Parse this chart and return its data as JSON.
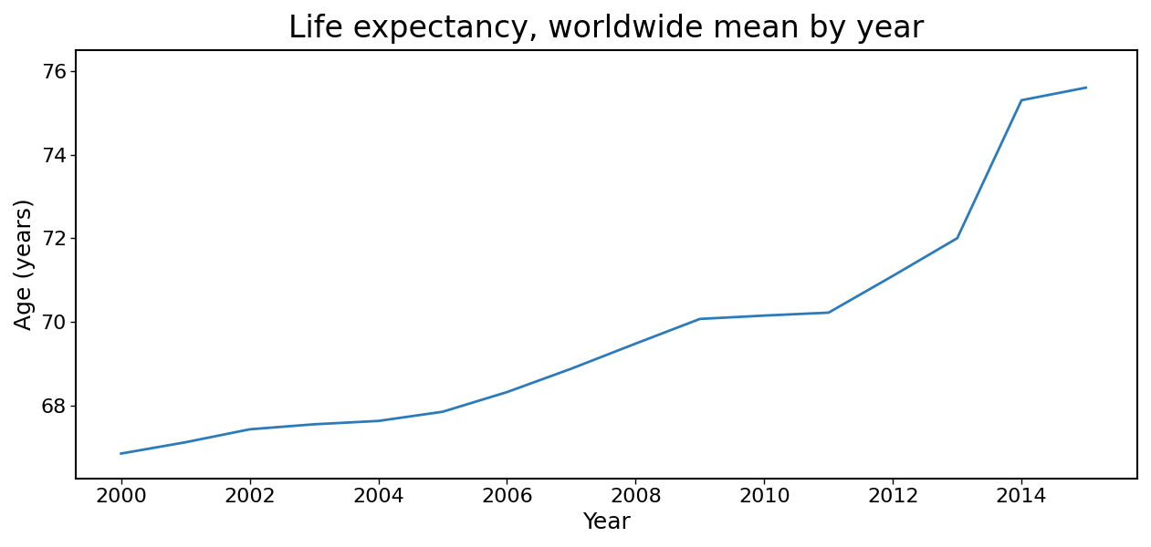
{
  "title": "Life expectancy, worldwide mean by year",
  "xlabel": "Year",
  "ylabel": "Age (years)",
  "line_color": "#2b7bba",
  "line_width": 2.0,
  "years": [
    2000,
    2001,
    2002,
    2003,
    2004,
    2005,
    2006,
    2007,
    2008,
    2009,
    2010,
    2011,
    2012,
    2013,
    2014,
    2015
  ],
  "values": [
    66.85,
    67.12,
    67.43,
    67.55,
    67.63,
    67.85,
    68.32,
    68.88,
    69.48,
    70.07,
    70.15,
    70.22,
    71.1,
    72.0,
    75.3,
    75.6
  ],
  "xlim_left": 1999.3,
  "xlim_right": 2015.8,
  "ylim_bottom": 66.25,
  "ylim_top": 76.5,
  "xticks": [
    2000,
    2002,
    2004,
    2006,
    2008,
    2010,
    2012,
    2014
  ],
  "yticks": [
    68,
    70,
    72,
    74,
    76
  ],
  "title_fontsize": 24,
  "label_fontsize": 18,
  "tick_fontsize": 16
}
